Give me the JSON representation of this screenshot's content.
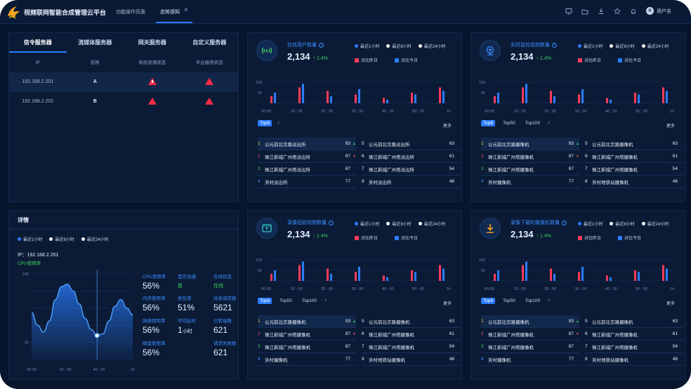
{
  "app": {
    "title": "视频联网智能合成管理云平台",
    "tabs": [
      {
        "label": "功能操作页面"
      },
      {
        "label": "态势感知"
      }
    ],
    "user": "用户名",
    "icons": [
      "monitor-icon",
      "folder-icon",
      "download-icon",
      "star-icon",
      "bell-icon"
    ]
  },
  "servers": {
    "tabs": [
      "信令服务器",
      "流媒体服务器",
      "网关服务器",
      "自定义服务器"
    ],
    "columns": [
      "IP",
      "名称",
      "系统资源状态",
      "平台服务状态"
    ],
    "rows": [
      {
        "ip": "192.168.2.201",
        "name": "A",
        "sys": "warning",
        "svc": "alert"
      },
      {
        "ip": "192.168.2.202",
        "name": "B",
        "sys": "alert",
        "svc": "alert"
      }
    ]
  },
  "detail": {
    "title": "详情",
    "legend": [
      "最近1小时",
      "最近8小时",
      "最近24小时"
    ],
    "ip_label": "IP：192.168.2.201",
    "cpu_chart_label": "CPU使用率",
    "cpu_chart": {
      "y_ticks": [
        "100",
        "",
        "",
        "",
        "25",
        ""
      ],
      "x_ticks": [
        "00:00",
        "20 : 00",
        "40 : 00",
        "1h"
      ],
      "points": [
        55,
        40,
        32,
        45,
        70,
        85,
        88,
        80,
        65,
        48,
        35,
        28,
        30,
        45,
        62,
        70,
        60,
        52
      ]
    },
    "metrics": [
      {
        "label": "CPU使用率",
        "value": "56%"
      },
      {
        "label": "是否连通",
        "value": "是",
        "green": true
      },
      {
        "label": "在线状态",
        "value": "在线",
        "green": true
      },
      {
        "label": "内存使用率",
        "value": "56%"
      },
      {
        "label": "丢包率",
        "value": "51%"
      },
      {
        "label": "并发请求数",
        "value": "5621"
      },
      {
        "label": "网络使用率",
        "value": "56%"
      },
      {
        "label": "平均延时",
        "value": "1",
        "unit": "小时"
      },
      {
        "label": "已转接数",
        "value": "621"
      },
      {
        "label": "磁盘使用率",
        "value": "56%"
      },
      {
        "label": "",
        "value": ""
      },
      {
        "label": "请求失败数",
        "value": "621"
      }
    ]
  },
  "cards": [
    {
      "title": "在线用户数量",
      "icon": "user-signal-icon",
      "icon_color": "#3fd05c",
      "count": "2,134",
      "change": "↑ 1.4%",
      "legend_top": [
        "最近1小时",
        "最近8小时",
        "最近24小时"
      ],
      "legend_bottom": [
        "对比昨日",
        "对比今日"
      ],
      "y_ticks": [
        "100",
        "50"
      ],
      "x_ticks": [
        "00:00",
        "10 : 00",
        "20 : 00",
        "30 : 00",
        "40 : 00",
        "50 : 00",
        "1h"
      ],
      "chips": [
        "Top8"
      ],
      "more": "更多",
      "bars": [
        [
          20,
          30
        ],
        [
          45,
          55
        ],
        [
          35,
          20
        ],
        [
          25,
          40
        ],
        [
          15,
          10
        ],
        [
          30,
          25
        ],
        [
          45,
          35
        ]
      ],
      "left": [
        {
          "rank": "1",
          "name": "公元前北京路派出所",
          "value": "93",
          "up": true
        },
        {
          "rank": "2",
          "name": "珠江新城广州塔派出所",
          "value": "87",
          "up": false
        },
        {
          "rank": "3",
          "name": "珠江新城广州塔派出所",
          "value": "87"
        },
        {
          "rank": "4",
          "name": "芳村派出所",
          "value": "77"
        }
      ],
      "right": [
        {
          "rank": "5",
          "name": "公元前北京路派出所",
          "value": "63"
        },
        {
          "rank": "6",
          "name": "珠江新城广州塔派出所",
          "value": "61"
        },
        {
          "rank": "7",
          "name": "珠江新城广州塔派出所",
          "value": "54"
        },
        {
          "rank": "8",
          "name": "芳村派出所",
          "value": "48"
        }
      ]
    },
    {
      "title": "实时监控视频数量",
      "icon": "camera-icon",
      "icon_color": "#3a8cff",
      "count": "2,134",
      "change": "↑ 1.4%",
      "legend_top": [
        "最近1小时",
        "最近8小时",
        "最近24小时"
      ],
      "legend_bottom": [
        "对比昨日",
        "对比今日"
      ],
      "y_ticks": [
        "100",
        "50"
      ],
      "x_ticks": [
        "00:00",
        "10 : 00",
        "20 : 00",
        "30 : 00",
        "40 : 00",
        "50 : 00",
        "1h"
      ],
      "chips": [
        "Top8",
        "Top50",
        "Top100"
      ],
      "more": "更多",
      "bars": [
        [
          20,
          30
        ],
        [
          45,
          55
        ],
        [
          35,
          20
        ],
        [
          25,
          40
        ],
        [
          15,
          10
        ],
        [
          30,
          25
        ],
        [
          45,
          35
        ]
      ],
      "left": [
        {
          "rank": "1",
          "name": "公元前北京路摄像机",
          "value": "93",
          "up": true
        },
        {
          "rank": "2",
          "name": "珠江新城广州塔摄像机",
          "value": "87",
          "up": false
        },
        {
          "rank": "3",
          "name": "珠江新城广州塔摄像机",
          "value": "87"
        },
        {
          "rank": "4",
          "name": "芳村摄像机",
          "value": "77"
        }
      ],
      "right": [
        {
          "rank": "5",
          "name": "公元前北京路摄像机",
          "value": "63"
        },
        {
          "rank": "6",
          "name": "珠江新城广州塔摄像机",
          "value": "61"
        },
        {
          "rank": "7",
          "name": "珠江新城广州塔摄像机",
          "value": "54"
        },
        {
          "rank": "8",
          "name": "芳村地铁站摄像机",
          "value": "48"
        }
      ]
    },
    {
      "title": "录像回放视频数量",
      "icon": "video-play-icon",
      "icon_color": "#2ec7c0",
      "count": "2,134",
      "change": "↑ 1.4%",
      "legend_top": [
        "最近1小时",
        "最近8小时",
        "最近24小时"
      ],
      "legend_bottom": [
        "对比昨日",
        "对比今日"
      ],
      "y_ticks": [
        "100",
        "50"
      ],
      "x_ticks": [
        "00:00",
        "10 : 00",
        "20 : 00",
        "30 : 00",
        "40 : 00",
        "50 : 00",
        "1h"
      ],
      "chips": [
        "Top8",
        "Top50",
        "Top100"
      ],
      "more": "更多",
      "bars": [
        [
          20,
          30
        ],
        [
          45,
          55
        ],
        [
          35,
          20
        ],
        [
          25,
          40
        ],
        [
          15,
          10
        ],
        [
          30,
          25
        ],
        [
          45,
          35
        ]
      ],
      "left": [
        {
          "rank": "1",
          "name": "公元前北京路摄像机",
          "value": "93",
          "up": true
        },
        {
          "rank": "2",
          "name": "珠江新城广州塔摄像机",
          "value": "87",
          "up": false
        },
        {
          "rank": "3",
          "name": "珠江新城广州塔摄像机",
          "value": "87"
        },
        {
          "rank": "4",
          "name": "芳村摄像机",
          "value": "77"
        }
      ],
      "right": [
        {
          "rank": "5",
          "name": "公元前北京路摄像机",
          "value": "63"
        },
        {
          "rank": "6",
          "name": "珠江新城广州塔摄像机",
          "value": "61"
        },
        {
          "rank": "7",
          "name": "珠江新城广州塔摄像机",
          "value": "54"
        },
        {
          "rank": "8",
          "name": "芳村地铁站摄像机",
          "value": "48"
        }
      ]
    },
    {
      "title": "录像下载的摄像机数量",
      "icon": "download-icon",
      "icon_color": "#ff9b1a",
      "count": "2,134",
      "change": "↑ 1.4%",
      "legend_top": [
        "最近1小时",
        "最近8小时",
        "最近24小时"
      ],
      "legend_bottom": [
        "对比昨日",
        "对比今日"
      ],
      "y_ticks": [
        "100",
        "50"
      ],
      "x_ticks": [
        "00:00",
        "10 : 00",
        "20 : 00",
        "30 : 00",
        "40 : 00",
        "50 : 00",
        "1h"
      ],
      "chips": [
        "Top8",
        "Top50",
        "Top100"
      ],
      "more": "更多",
      "bars": [
        [
          20,
          30
        ],
        [
          45,
          55
        ],
        [
          35,
          20
        ],
        [
          25,
          40
        ],
        [
          15,
          10
        ],
        [
          30,
          25
        ],
        [
          45,
          35
        ]
      ],
      "left": [
        {
          "rank": "1",
          "name": "公元前北京路摄像机",
          "value": "93",
          "up": true
        },
        {
          "rank": "2",
          "name": "珠江新城广州塔摄像机",
          "value": "87",
          "up": false
        },
        {
          "rank": "3",
          "name": "珠江新城广州塔摄像机",
          "value": "87"
        },
        {
          "rank": "4",
          "name": "芳村摄像机",
          "value": "77"
        }
      ],
      "right": [
        {
          "rank": "5",
          "name": "公元前北京路摄像机",
          "value": "63"
        },
        {
          "rank": "6",
          "name": "珠江新城广州塔摄像机",
          "value": "61"
        },
        {
          "rank": "7",
          "name": "珠江新城广州塔摄像机",
          "value": "54"
        },
        {
          "rank": "8",
          "name": "芳村地铁站摄像机",
          "value": "48"
        }
      ]
    }
  ],
  "colors": {
    "accent": "#2b7cff",
    "bar_a": "#ff3b5c",
    "bar_b": "#2b7cff",
    "rank": [
      "#f5c518",
      "#ff4d4f",
      "#3fd05c",
      "#3a8cff"
    ]
  }
}
